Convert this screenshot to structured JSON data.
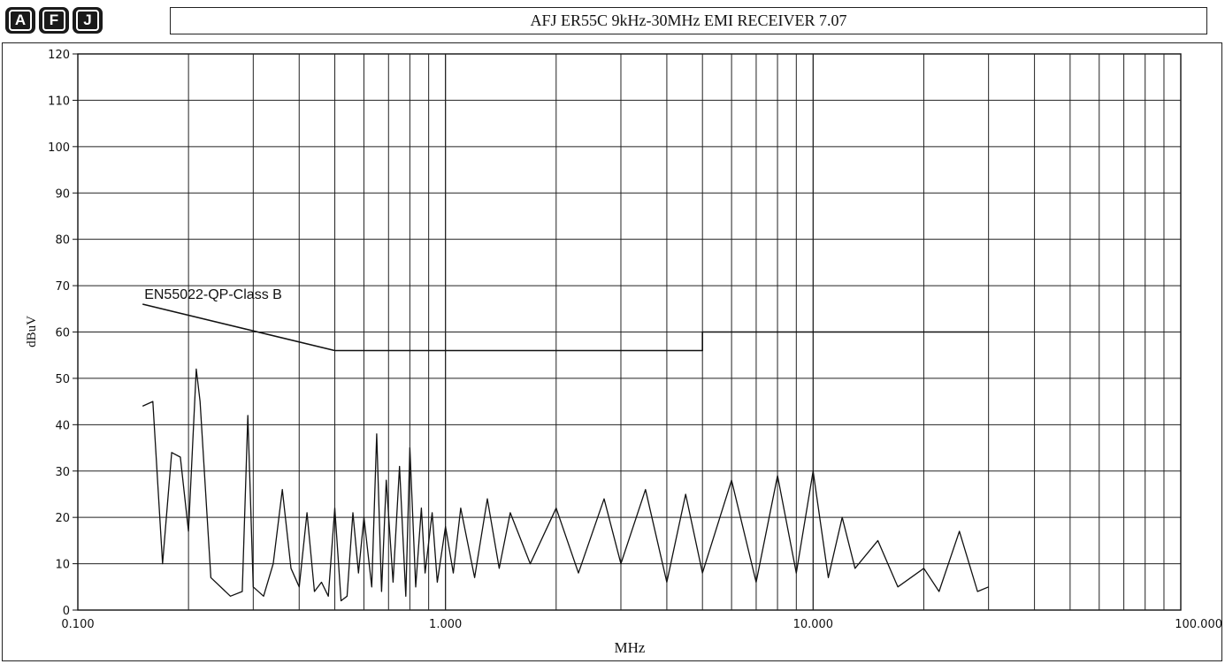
{
  "header": {
    "logo_letters": [
      "A",
      "F",
      "J"
    ],
    "title": "AFJ ER55C 9kHz-30MHz EMI RECEIVER  7.07"
  },
  "chart_data": {
    "type": "line",
    "title": "AFJ ER55C 9kHz-30MHz EMI RECEIVER  7.07",
    "xlabel": "MHz",
    "ylabel": "dBuV",
    "x_scale": "log",
    "xlim": [
      0.1,
      100
    ],
    "ylim": [
      0,
      120
    ],
    "x_ticks": [
      0.1,
      1,
      10,
      100
    ],
    "x_tick_labels": [
      "0.100",
      "1.000",
      "10.000",
      "100.000"
    ],
    "y_ticks": [
      0,
      10,
      20,
      30,
      40,
      50,
      60,
      70,
      80,
      90,
      100,
      110,
      120
    ],
    "y_tick_labels": [
      "0",
      "10",
      "20",
      "30",
      "40",
      "50",
      "60",
      "70",
      "80",
      "90",
      "100",
      "110",
      "120"
    ],
    "grid": true,
    "annotations": [
      {
        "text": "EN55022-QP-Class B",
        "x": 0.15,
        "y": 67
      }
    ],
    "series": [
      {
        "name": "EN55022-QP-Class B",
        "x": [
          0.15,
          0.5,
          0.5,
          5,
          5,
          30
        ],
        "y": [
          66,
          56,
          56,
          56,
          60,
          60
        ]
      },
      {
        "x": [
          0.15,
          0.16,
          0.17,
          0.18,
          0.19,
          0.2,
          0.21,
          0.215,
          0.23,
          0.26,
          0.28,
          0.29,
          0.3,
          0.32,
          0.34,
          0.36,
          0.38,
          0.4,
          0.42,
          0.44,
          0.46,
          0.48,
          0.5,
          0.52,
          0.54,
          0.56,
          0.58,
          0.6,
          0.63,
          0.65,
          0.67,
          0.69,
          0.72,
          0.75,
          0.78,
          0.8,
          0.83,
          0.86,
          0.88,
          0.92,
          0.95,
          1.0,
          1.05,
          1.1,
          1.2,
          1.3,
          1.4,
          1.5,
          1.7,
          2.0,
          2.3,
          2.7,
          3.0,
          3.5,
          4.0,
          4.5,
          5.0,
          6.0,
          7.0,
          8.0,
          9.0,
          10.0,
          11.0,
          12.0,
          13.0,
          15.0,
          17.0,
          20.0,
          22.0,
          25.0,
          28.0,
          30.0
        ],
        "y": [
          44,
          45,
          10,
          34,
          33,
          17,
          52,
          45,
          7,
          3,
          4,
          42,
          5,
          3,
          10,
          26,
          9,
          5,
          21,
          4,
          6,
          3,
          22,
          2,
          3,
          21,
          8,
          20,
          5,
          38,
          4,
          28,
          6,
          31,
          3,
          35,
          5,
          22,
          8,
          21,
          6,
          18,
          8,
          22,
          7,
          24,
          9,
          21,
          10,
          22,
          8,
          24,
          10,
          26,
          6,
          25,
          8,
          28,
          6,
          29,
          8,
          30,
          7,
          20,
          9,
          15,
          5,
          9,
          4,
          17,
          4,
          5
        ]
      }
    ]
  }
}
